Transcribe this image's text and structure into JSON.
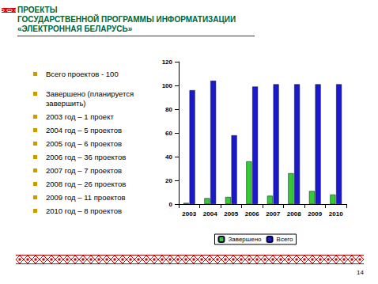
{
  "header": {
    "title_lines": [
      "ПРОЕКТЫ",
      "ГОСУДАРСТВЕННОЙ ПРОГРАММЫ ИНФОРМАТИЗАЦИИ",
      "«ЭЛЕКТРОННАЯ БЕЛАРУСЬ»"
    ]
  },
  "bullets": [
    "Всего проектов - 100",
    "Завершено (планируется завершить)",
    "2003 год – 1 проект",
    "2004 год – 5 проектов",
    "2005 год – 6 проектов",
    "2006 год – 36 проектов",
    "2007 год – 7 проектов",
    "2008 год – 26 проектов",
    "2009 год – 11 проектов",
    "2010 год – 8 проектов"
  ],
  "page_number": "14",
  "chart_data": {
    "type": "bar",
    "categories": [
      "2003",
      "2004",
      "2005",
      "2006",
      "2007",
      "2008",
      "2009",
      "2010"
    ],
    "series": [
      {
        "name": "Завершено",
        "color": "#33cc33",
        "values": [
          1,
          5,
          6,
          36,
          7,
          26,
          11,
          8
        ]
      },
      {
        "name": "Всего",
        "color": "#1a1acc",
        "values": [
          96,
          104,
          58,
          99,
          101,
          101,
          101,
          101
        ]
      }
    ],
    "ylim": [
      0,
      120
    ],
    "yticks": [
      0,
      20,
      40,
      60,
      80,
      100,
      120
    ],
    "grid": false,
    "legend": "bottom"
  }
}
